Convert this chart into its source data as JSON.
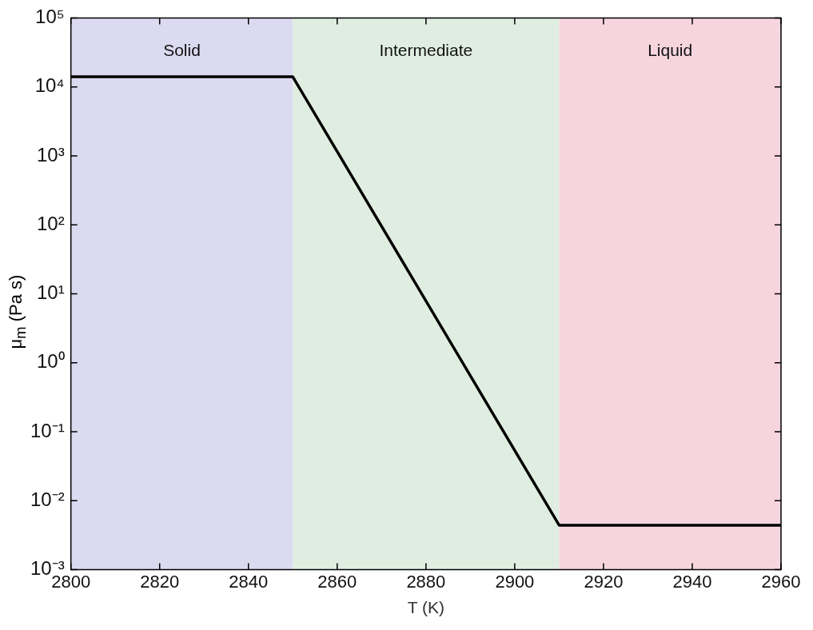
{
  "chart_data": {
    "type": "line",
    "xlabel": "T (K)",
    "ylabel": "μ$_{m}$ (Pa s)",
    "x": [
      2800,
      2850,
      2910,
      2960
    ],
    "series": [
      {
        "color": "#000000",
        "values": [
          14000,
          14000,
          0.0044,
          0.0044
        ]
      }
    ],
    "xlim": [
      2800,
      2960
    ],
    "xticks": [
      2800,
      2820,
      2840,
      2860,
      2880,
      2900,
      2920,
      2940,
      2960
    ],
    "ylim": [
      0.001,
      100000
    ],
    "yticks": [
      {
        "value": 0.001,
        "label": "10⁻³"
      },
      {
        "value": 0.01,
        "label": "10⁻²"
      },
      {
        "value": 0.1,
        "label": "10⁻¹"
      },
      {
        "value": 1,
        "label": "10⁰"
      },
      {
        "value": 10,
        "label": "10¹"
      },
      {
        "value": 100,
        "label": "10²"
      },
      {
        "value": 1000,
        "label": "10³"
      },
      {
        "value": 10000,
        "label": "10⁴"
      },
      {
        "value": 100000,
        "label": "10⁵"
      }
    ],
    "log": "y",
    "grid": false,
    "legend": false,
    "marker": "none",
    "line_style": "solid",
    "bands": [
      {
        "axis": "x",
        "from": 2800,
        "to": 2850,
        "label": "Solid",
        "color": "#dcdaf0"
      },
      {
        "axis": "x",
        "from": 2850,
        "to": 2910,
        "label": "Intermediate",
        "color": "#dfeee0"
      },
      {
        "axis": "x",
        "from": 2910,
        "to": 2960,
        "label": "Liquid",
        "color": "#f6d5de"
      }
    ]
  }
}
